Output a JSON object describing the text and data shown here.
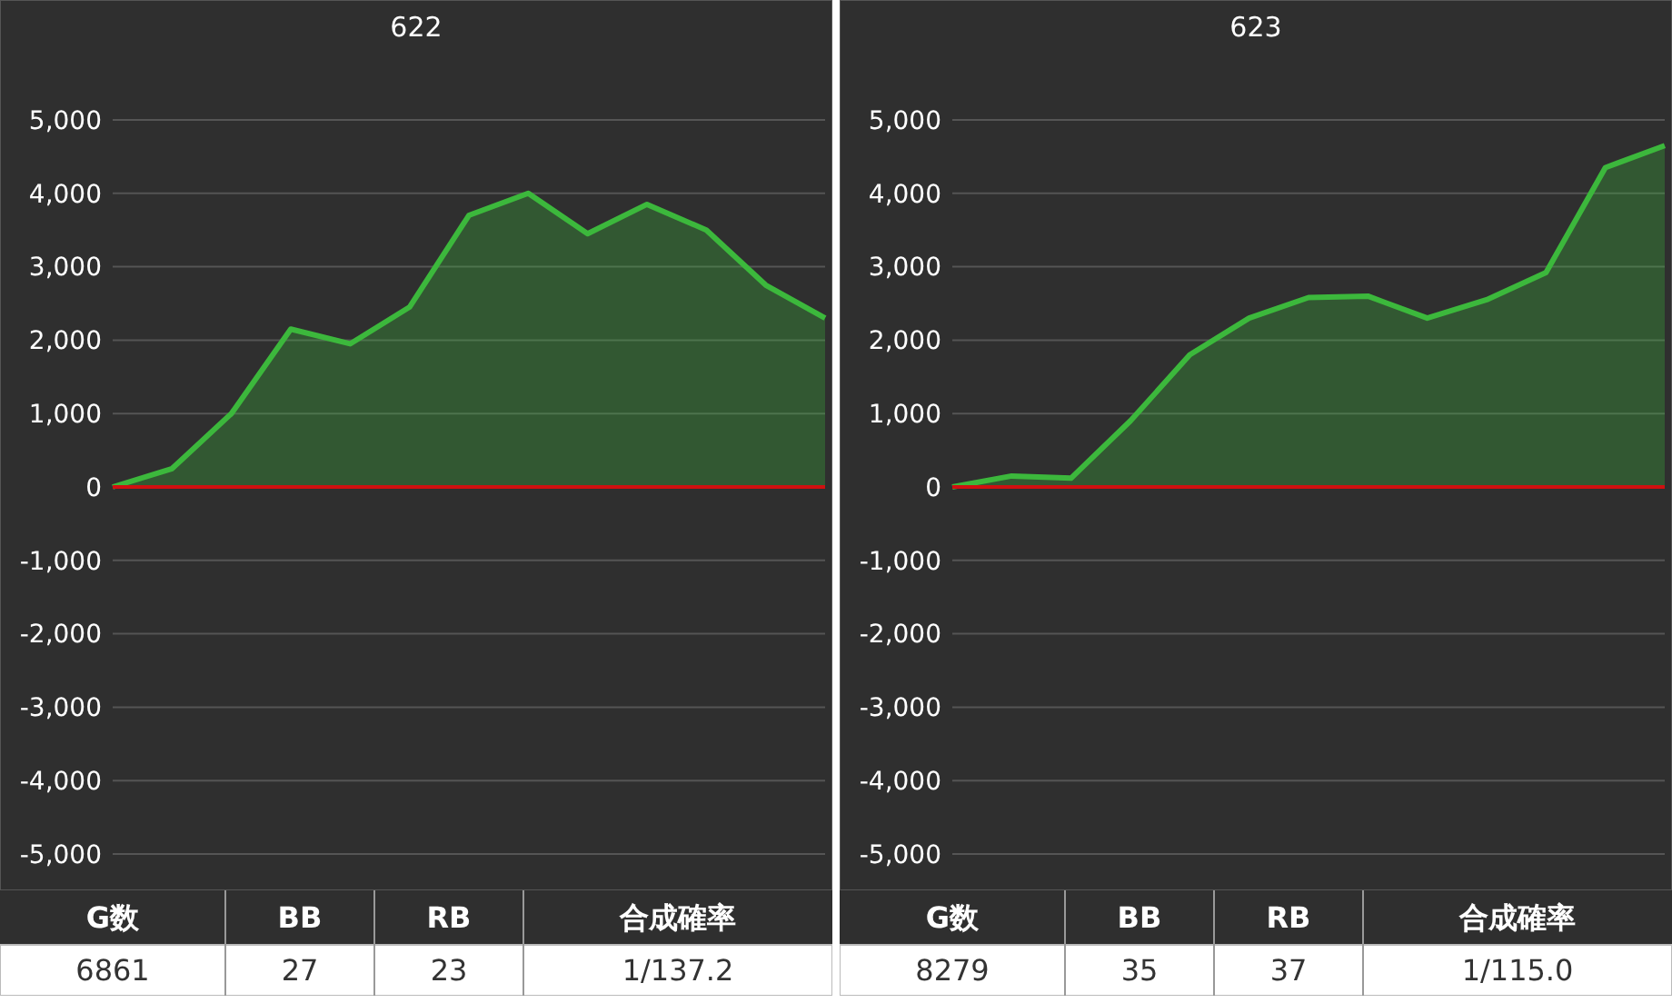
{
  "chart_data": [
    {
      "type": "area",
      "title": "622",
      "categories": [
        null,
        null,
        null,
        null,
        null,
        null,
        null,
        null,
        null,
        null,
        null,
        null,
        null
      ],
      "series": [
        {
          "color": "#3cb83c",
          "values": [
            0,
            250,
            1000,
            2150,
            1950,
            2450,
            3700,
            4000,
            3450,
            3850,
            3500,
            2750,
            2300
          ]
        }
      ],
      "ylim": [
        -5000,
        5000
      ],
      "yticks": [
        {
          "value": -5000,
          "label": "-5,000"
        },
        {
          "value": -4000,
          "label": "-4,000"
        },
        {
          "value": -3000,
          "label": "-3,000"
        },
        {
          "value": -2000,
          "label": "-2,000"
        },
        {
          "value": -1000,
          "label": "-1,000"
        },
        0,
        {
          "value": 1000,
          "label": "1,000"
        },
        {
          "value": 2000,
          "label": "2,000"
        },
        {
          "value": 3000,
          "label": "3,000"
        },
        {
          "value": 4000,
          "label": "4,000"
        },
        {
          "value": 5000,
          "label": "5,000"
        }
      ],
      "grid": "y",
      "tick_labels": "y",
      "ref_lines": [
        {
          "axis": "y",
          "value": 0,
          "color": "#d01010"
        }
      ],
      "annotations": [
        "G数",
        "BB",
        "RB",
        "合成確率",
        "6861",
        "27",
        "23",
        "1/137.2"
      ]
    },
    {
      "type": "area",
      "title": "623",
      "categories": [
        null,
        null,
        null,
        null,
        null,
        null,
        null,
        null,
        null,
        null,
        null,
        null,
        null
      ],
      "series": [
        {
          "color": "#3cb83c",
          "values": [
            0,
            150,
            120,
            900,
            1800,
            2300,
            2580,
            2600,
            2300,
            2550,
            2920,
            4350,
            4650
          ]
        }
      ],
      "ylim": [
        -5000,
        5000
      ],
      "yticks": [
        {
          "value": -5000,
          "label": "-5,000"
        },
        {
          "value": -4000,
          "label": "-4,000"
        },
        {
          "value": -3000,
          "label": "-3,000"
        },
        {
          "value": -2000,
          "label": "-2,000"
        },
        {
          "value": -1000,
          "label": "-1,000"
        },
        0,
        {
          "value": 1000,
          "label": "1,000"
        },
        {
          "value": 2000,
          "label": "2,000"
        },
        {
          "value": 3000,
          "label": "3,000"
        },
        {
          "value": 4000,
          "label": "4,000"
        },
        {
          "value": 5000,
          "label": "5,000"
        }
      ],
      "grid": "y",
      "tick_labels": "y",
      "ref_lines": [
        {
          "axis": "y",
          "value": 0,
          "color": "#d01010"
        }
      ],
      "annotations": [
        "G数",
        "BB",
        "RB",
        "合成確率",
        "8279",
        "35",
        "37",
        "1/115.0"
      ]
    }
  ]
}
